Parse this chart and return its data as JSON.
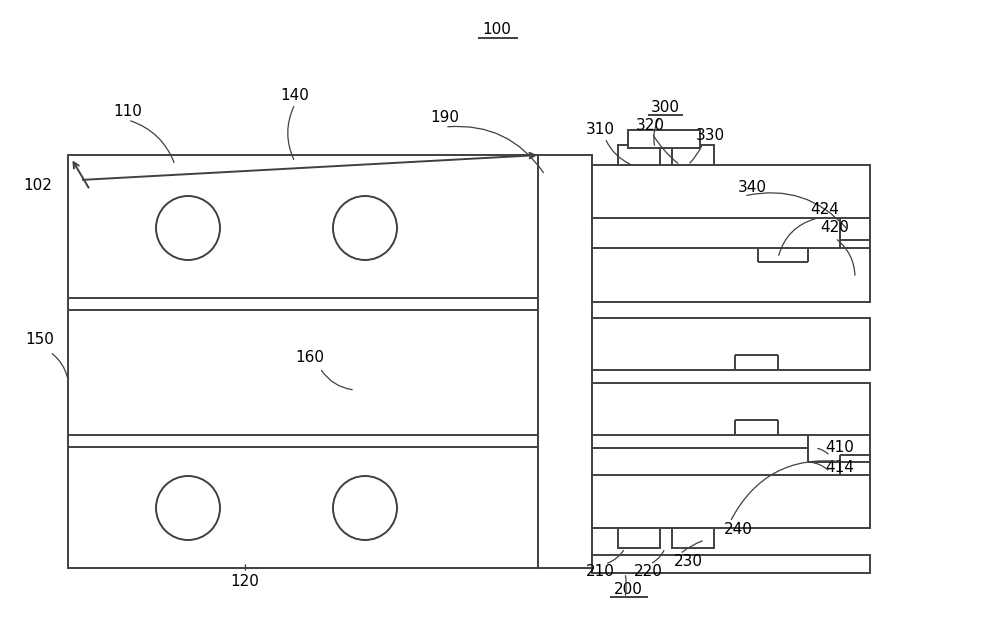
{
  "bg_color": "#ffffff",
  "line_color": "#404040",
  "title": "100",
  "figsize": [
    10.0,
    6.27
  ],
  "dpi": 100,
  "font_size": 11,
  "lw": 1.4
}
